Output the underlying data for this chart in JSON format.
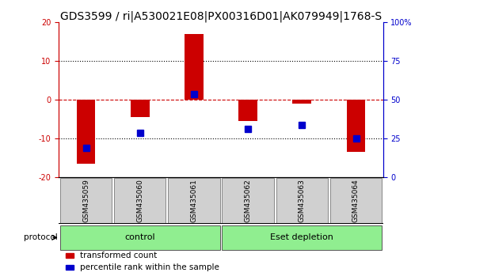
{
  "title": "GDS3599 / ri|A530021E08|PX00316D01|AK079949|1768-S",
  "samples": [
    "GSM435059",
    "GSM435060",
    "GSM435061",
    "GSM435062",
    "GSM435063",
    "GSM435064"
  ],
  "red_values": [
    -16.5,
    -4.5,
    17.0,
    -5.5,
    -1.0,
    -13.5
  ],
  "blue_values_left": [
    -12.5,
    -8.5,
    1.5,
    -7.5,
    -6.5,
    -10.0
  ],
  "ylim_left": [
    -20,
    20
  ],
  "ylim_right": [
    0,
    100
  ],
  "yticks_left": [
    -20,
    -10,
    0,
    10,
    20
  ],
  "yticks_right": [
    0,
    25,
    50,
    75,
    100
  ],
  "ytick_labels_right": [
    "0",
    "25",
    "50",
    "75",
    "100%"
  ],
  "groups": [
    {
      "label": "control",
      "start": 0,
      "end": 2,
      "color": "#90EE90"
    },
    {
      "label": "Eset depletion",
      "start": 3,
      "end": 5,
      "color": "#90EE90"
    }
  ],
  "protocol_label": "protocol",
  "red_color": "#CC0000",
  "blue_color": "#0000CC",
  "bar_width": 0.35,
  "blue_marker_size": 6,
  "legend_items": [
    {
      "label": "transformed count",
      "color": "#CC0000"
    },
    {
      "label": "percentile rank within the sample",
      "color": "#0000CC"
    }
  ],
  "title_fontsize": 10,
  "tick_fontsize": 7,
  "sample_fontsize": 6.5,
  "group_label_fontsize": 8,
  "legend_fontsize": 7.5,
  "left_axis_color": "#CC0000",
  "right_axis_color": "#0000CC",
  "bg_color": "#FFFFFF",
  "sample_box_color": "#D0D0D0",
  "n_samples": 6
}
